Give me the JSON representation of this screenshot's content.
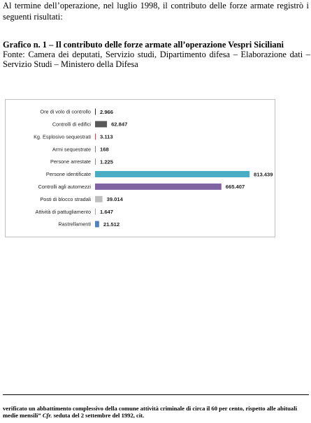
{
  "document": {
    "intro_text": "Al termine dell’operazione, nel luglio 1998, il contributo delle forze armate registrò i seguenti risultati:",
    "figure_title": "Grafico n. 1 – Il contributo delle forze armate all’operazione Vespri Siciliani",
    "figure_source": "Fonte: Camera dei deputati, Servizio studi, Dipartimento difesa –   Elaborazione dati – Servizio Studi – Ministero della Difesa",
    "footnote": {
      "text_before": "verificato un abbattimento complessivo della comune attività criminale di circa il 60 per cento, rispetto alle abituali medie mensili” ",
      "cfr": "Cfr.",
      "text_after": " seduta del 2 settembre del 1992, cit."
    }
  },
  "chart_data": {
    "type": "bar",
    "orientation": "horizontal",
    "title": "",
    "xlabel": "",
    "ylabel": "",
    "grid": false,
    "legend": "none",
    "xlim": [
      0,
      813439
    ],
    "categories": [
      "Ore di volo di controllo",
      "Controlli di edifici",
      "Kg. Esplosivo sequestrati",
      "Armi sequestrate",
      "Persone arrestate",
      "Persone identificate",
      "Controlli agli automezzi",
      "Posti di blocco stradali",
      "Attività di pattugliamento",
      "Rastrellamenti"
    ],
    "values": [
      2966,
      62847,
      3113,
      168,
      1225,
      813439,
      665407,
      39014,
      1647,
      21512
    ],
    "value_labels": [
      "2.966",
      "62.847",
      "3.113",
      "168",
      "1.225",
      "813.439",
      "665.407",
      "39.014",
      "1.647",
      "21.512"
    ],
    "colors": [
      "#2b2b2b",
      "#595959",
      "#c0504d",
      "#7f7f7f",
      "#8c8c8c",
      "#4bacc6",
      "#8064a2",
      "#bfbfbf",
      "#a6a6a6",
      "#4f81bd"
    ]
  }
}
